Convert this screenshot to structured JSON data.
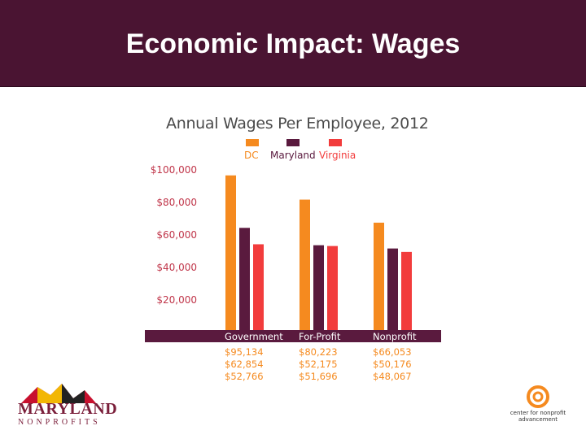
{
  "slide": {
    "title": "Economic Impact: Wages",
    "header_color": "#4a1432"
  },
  "chart_data": {
    "type": "bar",
    "title": "Annual Wages Per Employee, 2012",
    "categories": [
      "Government",
      "For-Profit",
      "Nonprofit"
    ],
    "series": [
      {
        "name": "DC",
        "color": "#f58a1f",
        "values": [
          95134,
          80223,
          66053
        ],
        "labels": [
          "$95,134",
          "$80,223",
          "$66,053"
        ]
      },
      {
        "name": "Maryland",
        "color": "#5a1a3e",
        "values": [
          62854,
          52175,
          50176
        ],
        "labels": [
          "$62,854",
          "$52,175",
          "$50,176"
        ]
      },
      {
        "name": "Virginia",
        "color": "#f23c3c",
        "values": [
          52766,
          51696,
          48067
        ],
        "labels": [
          "$52,766",
          "$51,696",
          "$48,067"
        ]
      }
    ],
    "yticks": [
      "$100,000",
      "$80,000",
      "$60,000",
      "$40,000",
      "$20,000"
    ],
    "ylim": [
      0,
      100000
    ],
    "legend_position": "top",
    "grid": false
  },
  "logos": {
    "left_word": "MARYLAND",
    "left_sub": "NONPROFITS",
    "right_text": "center for nonprofit advancement"
  }
}
